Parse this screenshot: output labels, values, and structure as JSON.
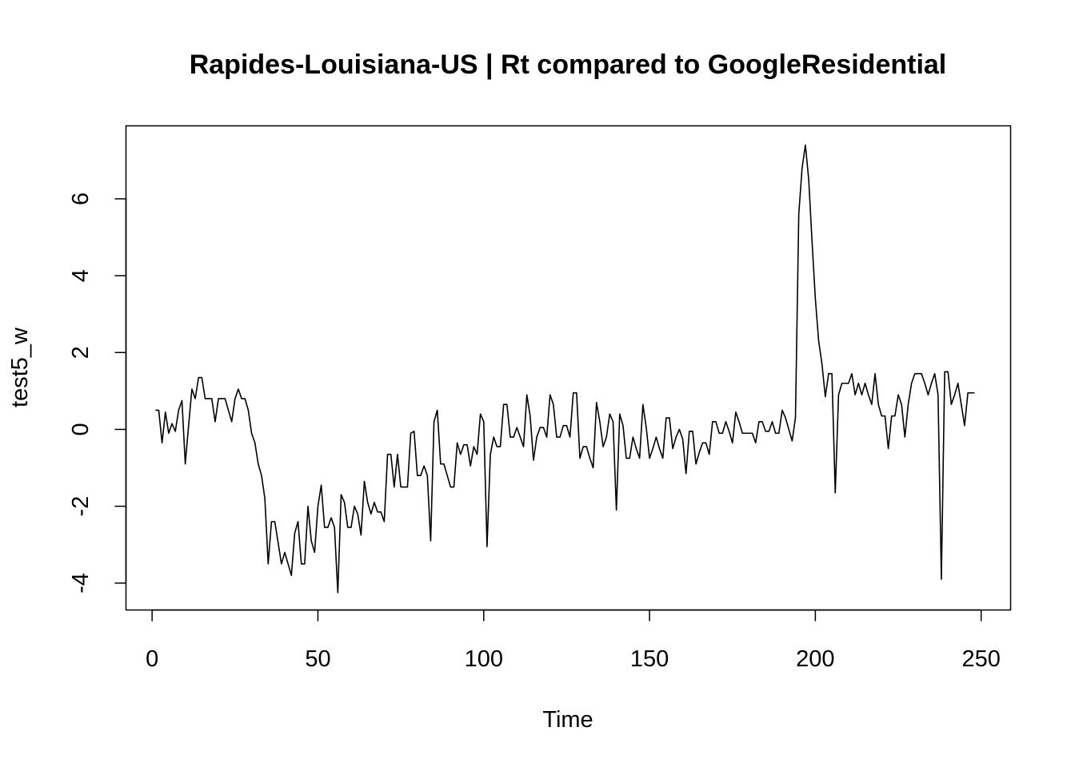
{
  "chart_data": {
    "type": "line",
    "title": "Rapides-Louisiana-US | Rt compared to GoogleResidential",
    "xlabel": "Time",
    "ylabel": "test5_w",
    "xlim": [
      -7.88,
      258.88
    ],
    "ylim": [
      -4.7,
      7.9
    ],
    "xticks": [
      0,
      50,
      100,
      150,
      200,
      250
    ],
    "yticks": [
      -4,
      -2,
      0,
      2,
      4,
      6
    ],
    "grid": false,
    "series": [
      {
        "x": [
          1,
          2,
          3,
          4,
          5,
          6,
          7,
          8,
          9,
          10,
          11,
          12,
          13,
          14,
          15,
          16,
          17,
          18,
          19,
          20,
          21,
          22,
          23,
          24,
          25,
          26,
          27,
          28,
          29,
          30,
          31,
          32,
          33,
          34,
          35,
          36,
          37,
          38,
          39,
          40,
          41,
          42,
          43,
          44,
          45,
          46,
          47,
          48,
          49,
          50,
          51,
          52,
          53,
          54,
          55,
          56,
          57,
          58,
          59,
          60,
          61,
          62,
          63,
          64,
          65,
          66,
          67,
          68,
          69,
          70,
          71,
          72,
          73,
          74,
          75,
          76,
          77,
          78,
          79,
          80,
          81,
          82,
          83,
          84,
          85,
          86,
          87,
          88,
          89,
          90,
          91,
          92,
          93,
          94,
          95,
          96,
          97,
          98,
          99,
          100,
          101,
          102,
          103,
          104,
          105,
          106,
          107,
          108,
          109,
          110,
          111,
          112,
          113,
          114,
          115,
          116,
          117,
          118,
          119,
          120,
          121,
          122,
          123,
          124,
          125,
          126,
          127,
          128,
          129,
          130,
          131,
          132,
          133,
          134,
          135,
          136,
          137,
          138,
          139,
          140,
          141,
          142,
          143,
          144,
          145,
          146,
          147,
          148,
          149,
          150,
          151,
          152,
          153,
          154,
          155,
          156,
          157,
          158,
          159,
          160,
          161,
          162,
          163,
          164,
          165,
          166,
          167,
          168,
          169,
          170,
          171,
          172,
          173,
          174,
          175,
          176,
          177,
          178,
          179,
          180,
          181,
          182,
          183,
          184,
          185,
          186,
          187,
          188,
          189,
          190,
          191,
          192,
          193,
          194,
          195,
          196,
          197,
          198,
          199,
          200,
          201,
          202,
          203,
          204,
          205,
          206,
          207,
          208,
          209,
          210,
          211,
          212,
          213,
          214,
          215,
          216,
          217,
          218,
          219,
          220,
          221,
          222,
          223,
          224,
          225,
          226,
          227,
          228,
          229,
          230,
          231,
          232,
          233,
          234,
          235,
          236,
          237,
          238,
          239,
          240,
          241,
          242,
          243,
          244,
          245,
          246,
          247,
          248
        ],
        "y": [
          0.5,
          0.5,
          -0.35,
          0.45,
          -0.1,
          0.15,
          -0.05,
          0.5,
          0.75,
          -0.9,
          0.1,
          1.05,
          0.8,
          1.35,
          1.35,
          0.8,
          0.8,
          0.8,
          0.2,
          0.8,
          0.8,
          0.8,
          0.5,
          0.2,
          0.8,
          1.05,
          0.8,
          0.8,
          0.5,
          -0.1,
          -0.35,
          -0.9,
          -1.2,
          -1.8,
          -3.5,
          -2.4,
          -2.4,
          -2.95,
          -3.5,
          -3.2,
          -3.5,
          -3.8,
          -2.7,
          -2.4,
          -3.5,
          -3.5,
          -2.0,
          -2.9,
          -3.2,
          -2.0,
          -1.45,
          -2.55,
          -2.55,
          -2.3,
          -2.55,
          -4.25,
          -1.7,
          -1.9,
          -2.55,
          -2.55,
          -2.0,
          -2.2,
          -2.75,
          -1.35,
          -1.9,
          -2.2,
          -1.9,
          -2.15,
          -2.15,
          -2.4,
          -0.65,
          -0.65,
          -1.5,
          -0.65,
          -1.5,
          -1.5,
          -1.5,
          -0.1,
          -0.05,
          -1.2,
          -1.2,
          -0.95,
          -1.2,
          -2.9,
          0.2,
          0.5,
          -0.9,
          -0.9,
          -1.2,
          -1.5,
          -1.5,
          -0.35,
          -0.65,
          -0.4,
          -0.4,
          -0.95,
          -0.45,
          -0.65,
          0.4,
          0.2,
          -3.05,
          -0.65,
          -0.2,
          -0.45,
          -0.45,
          0.65,
          0.65,
          -0.2,
          -0.2,
          0.05,
          -0.2,
          -0.45,
          0.9,
          0.35,
          -0.8,
          -0.2,
          0.05,
          0.05,
          -0.2,
          0.9,
          0.65,
          -0.2,
          -0.2,
          0.1,
          0.1,
          -0.2,
          0.95,
          0.95,
          -0.75,
          -0.45,
          -0.45,
          -0.75,
          -1.0,
          0.7,
          0.2,
          -0.45,
          -0.2,
          0.4,
          0.2,
          -2.1,
          0.4,
          0.1,
          -0.75,
          -0.75,
          -0.2,
          -0.5,
          -0.75,
          0.65,
          0.05,
          -0.75,
          -0.5,
          -0.2,
          -0.5,
          -0.75,
          0.3,
          0.3,
          -0.5,
          -0.2,
          0.0,
          -0.25,
          -1.15,
          -0.05,
          -0.05,
          -0.9,
          -0.6,
          -0.35,
          -0.35,
          -0.65,
          0.2,
          0.2,
          -0.1,
          -0.1,
          0.2,
          -0.05,
          -0.35,
          0.45,
          0.2,
          -0.1,
          -0.1,
          -0.1,
          -0.1,
          -0.35,
          0.2,
          0.2,
          -0.05,
          -0.05,
          0.2,
          -0.1,
          -0.1,
          0.5,
          0.3,
          0.0,
          -0.3,
          0.3,
          5.6,
          6.8,
          7.4,
          6.5,
          4.9,
          3.4,
          2.3,
          1.7,
          0.85,
          1.45,
          1.45,
          -1.65,
          0.9,
          1.2,
          1.2,
          1.2,
          1.45,
          0.9,
          1.2,
          0.9,
          1.2,
          0.9,
          0.65,
          1.45,
          0.65,
          0.35,
          0.35,
          -0.5,
          0.35,
          0.35,
          0.9,
          0.65,
          -0.2,
          0.65,
          1.2,
          1.45,
          1.45,
          1.45,
          1.2,
          0.9,
          1.2,
          1.45,
          0.9,
          -3.9,
          1.5,
          1.5,
          0.65,
          0.9,
          1.2,
          0.65,
          0.1,
          0.95,
          0.95,
          0.95
        ]
      }
    ]
  }
}
